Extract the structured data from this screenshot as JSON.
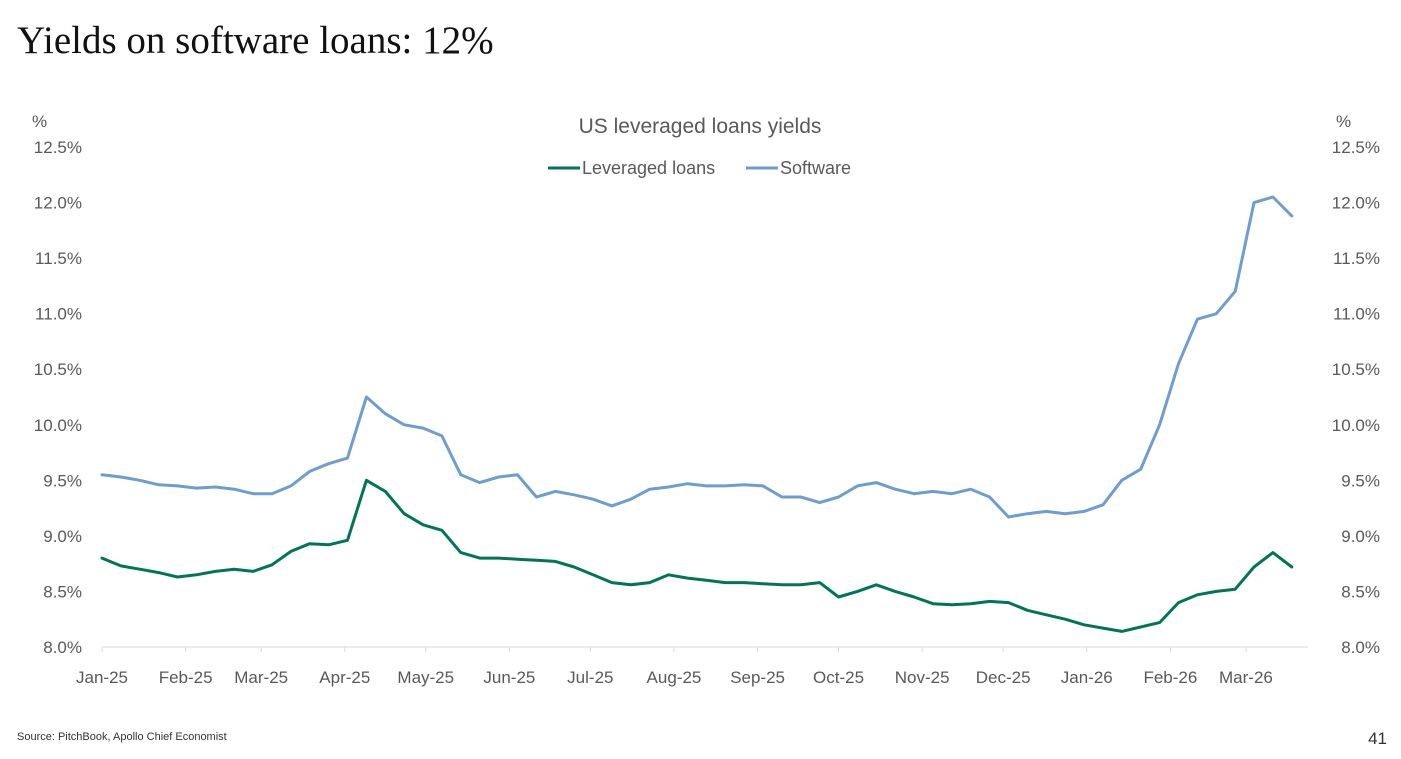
{
  "slide": {
    "title": "Yields on software loans: 12%",
    "source": "Source: PitchBook, Apollo Chief Economist",
    "page_number": "41"
  },
  "colors": {
    "leveraged_loans": "#007559",
    "software": "#6e9ecf",
    "axis_text": "#595959",
    "axis_line": "#d9d9d9"
  },
  "chart_data": {
    "type": "line",
    "title": "US leveraged loans yields",
    "y_unit_left": "%",
    "y_unit_right": "%",
    "ylim": [
      8.0,
      12.5
    ],
    "y_ticks": [
      "8.0%",
      "8.5%",
      "9.0%",
      "9.5%",
      "10.0%",
      "10.5%",
      "11.0%",
      "11.5%",
      "12.0%",
      "12.5%"
    ],
    "x_ticks": [
      "Jan-25",
      "Feb-25",
      "Mar-25",
      "Apr-25",
      "May-25",
      "Jun-25",
      "Jul-25",
      "Aug-25",
      "Sep-25",
      "Oct-25",
      "Nov-25",
      "Dec-25",
      "Jan-26",
      "Feb-26",
      "Mar-26"
    ],
    "legend_position": "top-center",
    "grid": false,
    "x": [
      "2025-01-01",
      "2025-01-08",
      "2025-01-15",
      "2025-01-22",
      "2025-01-29",
      "2025-02-05",
      "2025-02-12",
      "2025-02-19",
      "2025-02-26",
      "2025-03-05",
      "2025-03-12",
      "2025-03-19",
      "2025-03-26",
      "2025-04-02",
      "2025-04-09",
      "2025-04-16",
      "2025-04-23",
      "2025-04-30",
      "2025-05-07",
      "2025-05-14",
      "2025-05-21",
      "2025-05-28",
      "2025-06-04",
      "2025-06-11",
      "2025-06-18",
      "2025-06-25",
      "2025-07-02",
      "2025-07-09",
      "2025-07-16",
      "2025-07-23",
      "2025-07-30",
      "2025-08-06",
      "2025-08-13",
      "2025-08-20",
      "2025-08-27",
      "2025-09-03",
      "2025-09-10",
      "2025-09-17",
      "2025-09-24",
      "2025-10-01",
      "2025-10-08",
      "2025-10-15",
      "2025-10-22",
      "2025-10-29",
      "2025-11-05",
      "2025-11-12",
      "2025-11-19",
      "2025-11-26",
      "2025-12-03",
      "2025-12-10",
      "2025-12-17",
      "2025-12-24",
      "2025-12-31",
      "2026-01-07",
      "2026-01-14",
      "2026-01-21",
      "2026-01-28",
      "2026-02-04",
      "2026-02-11",
      "2026-02-18",
      "2026-02-25",
      "2026-03-04",
      "2026-03-11",
      "2026-03-18"
    ],
    "series": [
      {
        "name": "Leveraged loans",
        "values": [
          8.8,
          8.73,
          8.7,
          8.67,
          8.63,
          8.65,
          8.68,
          8.7,
          8.68,
          8.74,
          8.86,
          8.93,
          8.92,
          8.96,
          9.5,
          9.4,
          9.2,
          9.1,
          9.05,
          8.85,
          8.8,
          8.8,
          8.79,
          8.78,
          8.77,
          8.72,
          8.65,
          8.58,
          8.56,
          8.58,
          8.65,
          8.62,
          8.6,
          8.58,
          8.58,
          8.57,
          8.56,
          8.56,
          8.58,
          8.45,
          8.5,
          8.56,
          8.5,
          8.45,
          8.39,
          8.38,
          8.39,
          8.41,
          8.4,
          8.33,
          8.29,
          8.25,
          8.2,
          8.17,
          8.14,
          8.18,
          8.22,
          8.4,
          8.47,
          8.5,
          8.52,
          8.72,
          8.85,
          8.72
        ]
      },
      {
        "name": "Software",
        "values": [
          9.55,
          9.53,
          9.5,
          9.46,
          9.45,
          9.43,
          9.44,
          9.42,
          9.38,
          9.38,
          9.45,
          9.58,
          9.65,
          9.7,
          10.25,
          10.1,
          10.0,
          9.97,
          9.9,
          9.55,
          9.48,
          9.53,
          9.55,
          9.35,
          9.4,
          9.37,
          9.33,
          9.27,
          9.33,
          9.42,
          9.44,
          9.47,
          9.45,
          9.45,
          9.46,
          9.45,
          9.35,
          9.35,
          9.3,
          9.35,
          9.45,
          9.48,
          9.42,
          9.38,
          9.4,
          9.38,
          9.42,
          9.35,
          9.17,
          9.2,
          9.22,
          9.2,
          9.22,
          9.28,
          9.5,
          9.6,
          10.0,
          10.55,
          10.95,
          11.0,
          11.2,
          12.0,
          12.05,
          11.88
        ]
      }
    ]
  }
}
